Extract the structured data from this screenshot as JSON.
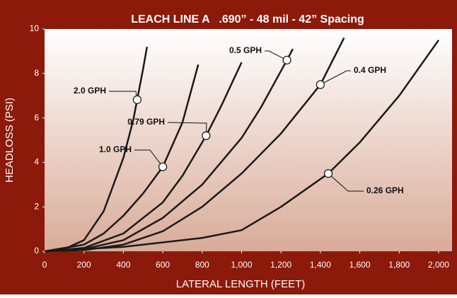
{
  "chart_data": {
    "type": "line",
    "title": "LEACH LINE A   .690” - 48 mil - 42” Spacing",
    "x_label": "LATERAL LENGTH (FEET)",
    "y_label": "HEADLOSS (PSI)",
    "xlim": [
      0,
      2000
    ],
    "xticks": [
      0,
      200,
      400,
      600,
      800,
      {
        "value": 1000,
        "label": "1,000"
      },
      {
        "value": 1200,
        "label": "1,200"
      },
      {
        "value": 1400,
        "label": "1,400"
      },
      {
        "value": 1600,
        "label": "1,600"
      },
      {
        "value": 1800,
        "label": "1,800"
      },
      {
        "value": 2000,
        "label": "2,000"
      }
    ],
    "ylim": [
      0,
      10
    ],
    "yticks": [
      0,
      2,
      4,
      6,
      8,
      10
    ],
    "grid": false,
    "series": [
      {
        "name": "2.0 GPH",
        "color": "#1a1a1a",
        "x": [
          0,
          100,
          200,
          300,
          400,
          450,
          500,
          520
        ],
        "values": [
          0,
          0.1,
          0.5,
          1.8,
          4.2,
          5.9,
          8.2,
          9.2
        ]
      },
      {
        "name": "1.0 GPH",
        "color": "#1a1a1a",
        "x": [
          0,
          200,
          300,
          400,
          500,
          600,
          700,
          780
        ],
        "values": [
          0,
          0.3,
          0.8,
          1.6,
          2.6,
          3.8,
          5.8,
          8.4
        ]
      },
      {
        "name": "0.79 GPH",
        "color": "#1a1a1a",
        "x": [
          0,
          200,
          400,
          600,
          700,
          820,
          900,
          1000
        ],
        "values": [
          0,
          0.15,
          0.8,
          2.2,
          3.4,
          5.2,
          6.6,
          8.5
        ]
      },
      {
        "name": "0.5 GPH",
        "color": "#1a1a1a",
        "x": [
          0,
          200,
          400,
          600,
          800,
          1000,
          1100,
          1230,
          1260
        ],
        "values": [
          0,
          0.1,
          0.5,
          1.5,
          3.0,
          5.1,
          6.5,
          8.6,
          9.1
        ]
      },
      {
        "name": "0.4 GPH",
        "color": "#1a1a1a",
        "x": [
          0,
          200,
          400,
          600,
          800,
          1000,
          1200,
          1400,
          1520
        ],
        "values": [
          0,
          0.05,
          0.3,
          0.9,
          2.0,
          3.5,
          5.3,
          7.5,
          9.6
        ]
      },
      {
        "name": "0.26 GPH",
        "color": "#1a1a1a",
        "x": [
          0,
          400,
          800,
          1000,
          1200,
          1440,
          1600,
          1800,
          2000
        ],
        "values": [
          0,
          0.2,
          0.6,
          0.95,
          2.0,
          3.5,
          4.9,
          7.0,
          9.5
        ]
      }
    ]
  }
}
